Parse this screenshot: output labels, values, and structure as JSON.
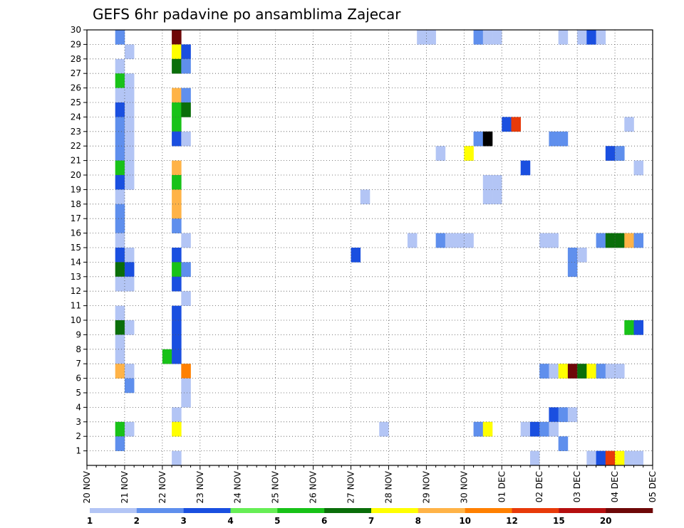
{
  "chart_data": {
    "type": "heatmap",
    "title": "GEFS 6hr padavine po ansamblima Zajecar",
    "xlabel": "",
    "ylabel": "",
    "x_tick_labels": [
      "20 NOV",
      "21 NOV",
      "22 NOV",
      "23 NOV",
      "24 NOV",
      "25 NOV",
      "26 NOV",
      "27 NOV",
      "28 NOV",
      "29 NOV",
      "30 NOV",
      "01 DEC",
      "02 DEC",
      "03 DEC",
      "04 DEC",
      "05 DEC"
    ],
    "y_tick_labels": [
      "1",
      "2",
      "3",
      "4",
      "5",
      "6",
      "7",
      "8",
      "9",
      "10",
      "11",
      "12",
      "13",
      "14",
      "15",
      "16",
      "17",
      "18",
      "19",
      "20",
      "21",
      "22",
      "23",
      "24",
      "25",
      "26",
      "27",
      "28",
      "29",
      "30"
    ],
    "ylim": [
      0,
      30
    ],
    "time_steps_per_day": 4,
    "grid": true,
    "colorbar": {
      "position": "bottom",
      "labels": [
        "1",
        "2",
        "3",
        "4",
        "5",
        "6",
        "7",
        "8",
        "10",
        "12",
        "15",
        "20"
      ],
      "colors": [
        "#b3c5f5",
        "#5f8fed",
        "#1a4fe0",
        "#66ee55",
        "#18c218",
        "#0a6e0a",
        "#ffff00",
        "#ffb347",
        "#ff8000",
        "#e83a0a",
        "#b50f0f",
        "#6e0808"
      ]
    },
    "cells": [
      {
        "member": 30,
        "step": 4,
        "value": 2
      },
      {
        "member": 30,
        "step": 10,
        "value": 12
      },
      {
        "member": 30,
        "step": 36,
        "value": 1
      },
      {
        "member": 30,
        "step": 37,
        "value": 1
      },
      {
        "member": 30,
        "step": 42,
        "value": 2
      },
      {
        "member": 30,
        "step": 43,
        "value": 1
      },
      {
        "member": 30,
        "step": 44,
        "value": 1
      },
      {
        "member": 30,
        "step": 51,
        "value": 1
      },
      {
        "member": 30,
        "step": 53,
        "value": 1
      },
      {
        "member": 30,
        "step": 54,
        "value": 3
      },
      {
        "member": 30,
        "step": 55,
        "value": 1
      },
      {
        "member": 29,
        "step": 5,
        "value": 1
      },
      {
        "member": 29,
        "step": 10,
        "value": 7
      },
      {
        "member": 29,
        "step": 11,
        "value": 3
      },
      {
        "member": 28,
        "step": 4,
        "value": 1
      },
      {
        "member": 28,
        "step": 10,
        "value": 6
      },
      {
        "member": 28,
        "step": 11,
        "value": 2
      },
      {
        "member": 27,
        "step": 4,
        "value": 5
      },
      {
        "member": 27,
        "step": 5,
        "value": 1
      },
      {
        "member": 26,
        "step": 4,
        "value": 1
      },
      {
        "member": 26,
        "step": 5,
        "value": 1
      },
      {
        "member": 26,
        "step": 10,
        "value": 8
      },
      {
        "member": 26,
        "step": 11,
        "value": 2
      },
      {
        "member": 25,
        "step": 4,
        "value": 3
      },
      {
        "member": 25,
        "step": 5,
        "value": 1
      },
      {
        "member": 25,
        "step": 10,
        "value": 5
      },
      {
        "member": 25,
        "step": 11,
        "value": 6
      },
      {
        "member": 24,
        "step": 4,
        "value": 2
      },
      {
        "member": 24,
        "step": 5,
        "value": 1
      },
      {
        "member": 24,
        "step": 10,
        "value": 5
      },
      {
        "member": 24,
        "step": 45,
        "value": 3
      },
      {
        "member": 24,
        "step": 46,
        "value": 10
      },
      {
        "member": 24,
        "step": 58,
        "value": 1
      },
      {
        "member": 23,
        "step": 4,
        "value": 2
      },
      {
        "member": 23,
        "step": 5,
        "value": 1
      },
      {
        "member": 23,
        "step": 10,
        "value": 3
      },
      {
        "member": 23,
        "step": 11,
        "value": 1
      },
      {
        "member": 23,
        "step": 42,
        "value": 2
      },
      {
        "member": 23,
        "step": 43,
        "value": 15
      },
      {
        "member": 23,
        "step": 50,
        "value": 2
      },
      {
        "member": 23,
        "step": 51,
        "value": 2
      },
      {
        "member": 22,
        "step": 4,
        "value": 2
      },
      {
        "member": 22,
        "step": 5,
        "value": 1
      },
      {
        "member": 22,
        "step": 38,
        "value": 1
      },
      {
        "member": 22,
        "step": 41,
        "value": 7
      },
      {
        "member": 22,
        "step": 56,
        "value": 3
      },
      {
        "member": 22,
        "step": 57,
        "value": 2
      },
      {
        "member": 21,
        "step": 4,
        "value": 5
      },
      {
        "member": 21,
        "step": 5,
        "value": 1
      },
      {
        "member": 21,
        "step": 10,
        "value": 8
      },
      {
        "member": 21,
        "step": 47,
        "value": 3
      },
      {
        "member": 21,
        "step": 59,
        "value": 1
      },
      {
        "member": 20,
        "step": 4,
        "value": 3
      },
      {
        "member": 20,
        "step": 5,
        "value": 1
      },
      {
        "member": 20,
        "step": 10,
        "value": 5
      },
      {
        "member": 20,
        "step": 43,
        "value": 1
      },
      {
        "member": 20,
        "step": 44,
        "value": 1
      },
      {
        "member": 19,
        "step": 4,
        "value": 1
      },
      {
        "member": 19,
        "step": 10,
        "value": 8
      },
      {
        "member": 19,
        "step": 30,
        "value": 1
      },
      {
        "member": 19,
        "step": 43,
        "value": 1
      },
      {
        "member": 19,
        "step": 44,
        "value": 1
      },
      {
        "member": 18,
        "step": 4,
        "value": 2
      },
      {
        "member": 18,
        "step": 10,
        "value": 8
      },
      {
        "member": 17,
        "step": 4,
        "value": 2
      },
      {
        "member": 17,
        "step": 10,
        "value": 2
      },
      {
        "member": 16,
        "step": 4,
        "value": 1
      },
      {
        "member": 16,
        "step": 11,
        "value": 1
      },
      {
        "member": 16,
        "step": 35,
        "value": 1
      },
      {
        "member": 16,
        "step": 38,
        "value": 2
      },
      {
        "member": 16,
        "step": 39,
        "value": 1
      },
      {
        "member": 16,
        "step": 40,
        "value": 1
      },
      {
        "member": 16,
        "step": 41,
        "value": 1
      },
      {
        "member": 16,
        "step": 49,
        "value": 1
      },
      {
        "member": 16,
        "step": 50,
        "value": 1
      },
      {
        "member": 16,
        "step": 55,
        "value": 2
      },
      {
        "member": 16,
        "step": 56,
        "value": 6
      },
      {
        "member": 16,
        "step": 57,
        "value": 6
      },
      {
        "member": 16,
        "step": 58,
        "value": 8
      },
      {
        "member": 16,
        "step": 59,
        "value": 2
      },
      {
        "member": 15,
        "step": 4,
        "value": 3
      },
      {
        "member": 15,
        "step": 5,
        "value": 1
      },
      {
        "member": 15,
        "step": 10,
        "value": 3
      },
      {
        "member": 15,
        "step": 29,
        "value": 3
      },
      {
        "member": 15,
        "step": 52,
        "value": 2
      },
      {
        "member": 15,
        "step": 53,
        "value": 1
      },
      {
        "member": 14,
        "step": 4,
        "value": 6
      },
      {
        "member": 14,
        "step": 5,
        "value": 3
      },
      {
        "member": 14,
        "step": 10,
        "value": 5
      },
      {
        "member": 14,
        "step": 11,
        "value": 2
      },
      {
        "member": 14,
        "step": 52,
        "value": 2
      },
      {
        "member": 13,
        "step": 4,
        "value": 1
      },
      {
        "member": 13,
        "step": 5,
        "value": 1
      },
      {
        "member": 13,
        "step": 10,
        "value": 3
      },
      {
        "member": 12,
        "step": 11,
        "value": 1
      },
      {
        "member": 11,
        "step": 4,
        "value": 1
      },
      {
        "member": 11,
        "step": 10,
        "value": 3
      },
      {
        "member": 10,
        "step": 4,
        "value": 6
      },
      {
        "member": 10,
        "step": 5,
        "value": 1
      },
      {
        "member": 10,
        "step": 10,
        "value": 3
      },
      {
        "member": 10,
        "step": 58,
        "value": 5
      },
      {
        "member": 10,
        "step": 59,
        "value": 3
      },
      {
        "member": 9,
        "step": 4,
        "value": 1
      },
      {
        "member": 9,
        "step": 10,
        "value": 3
      },
      {
        "member": 8,
        "step": 4,
        "value": 1
      },
      {
        "member": 8,
        "step": 9,
        "value": 5
      },
      {
        "member": 8,
        "step": 10,
        "value": 3
      },
      {
        "member": 7,
        "step": 4,
        "value": 8
      },
      {
        "member": 7,
        "step": 5,
        "value": 1
      },
      {
        "member": 7,
        "step": 11,
        "value": 9
      },
      {
        "member": 7,
        "step": 49,
        "value": 2
      },
      {
        "member": 7,
        "step": 50,
        "value": 1
      },
      {
        "member": 7,
        "step": 51,
        "value": 7
      },
      {
        "member": 7,
        "step": 52,
        "value": 12
      },
      {
        "member": 7,
        "step": 53,
        "value": 6
      },
      {
        "member": 7,
        "step": 54,
        "value": 7
      },
      {
        "member": 7,
        "step": 55,
        "value": 2
      },
      {
        "member": 7,
        "step": 56,
        "value": 1
      },
      {
        "member": 7,
        "step": 57,
        "value": 1
      },
      {
        "member": 6,
        "step": 5,
        "value": 2
      },
      {
        "member": 6,
        "step": 11,
        "value": 1
      },
      {
        "member": 5,
        "step": 11,
        "value": 1
      },
      {
        "member": 4,
        "step": 10,
        "value": 1
      },
      {
        "member": 4,
        "step": 50,
        "value": 3
      },
      {
        "member": 4,
        "step": 51,
        "value": 2
      },
      {
        "member": 4,
        "step": 52,
        "value": 1
      },
      {
        "member": 3,
        "step": 4,
        "value": 5
      },
      {
        "member": 3,
        "step": 5,
        "value": 1
      },
      {
        "member": 3,
        "step": 10,
        "value": 7
      },
      {
        "member": 3,
        "step": 32,
        "value": 1
      },
      {
        "member": 3,
        "step": 42,
        "value": 2
      },
      {
        "member": 3,
        "step": 43,
        "value": 7
      },
      {
        "member": 3,
        "step": 47,
        "value": 1
      },
      {
        "member": 3,
        "step": 48,
        "value": 3
      },
      {
        "member": 3,
        "step": 49,
        "value": 2
      },
      {
        "member": 3,
        "step": 50,
        "value": 1
      },
      {
        "member": 2,
        "step": 4,
        "value": 2
      },
      {
        "member": 2,
        "step": 51,
        "value": 2
      },
      {
        "member": 1,
        "step": 10,
        "value": 1
      },
      {
        "member": 1,
        "step": 48,
        "value": 1
      },
      {
        "member": 1,
        "step": 54,
        "value": 1
      },
      {
        "member": 1,
        "step": 55,
        "value": 3
      },
      {
        "member": 1,
        "step": 56,
        "value": 10
      },
      {
        "member": 1,
        "step": 57,
        "value": 7
      },
      {
        "member": 1,
        "step": 58,
        "value": 1
      },
      {
        "member": 1,
        "step": 59,
        "value": 1
      }
    ]
  }
}
